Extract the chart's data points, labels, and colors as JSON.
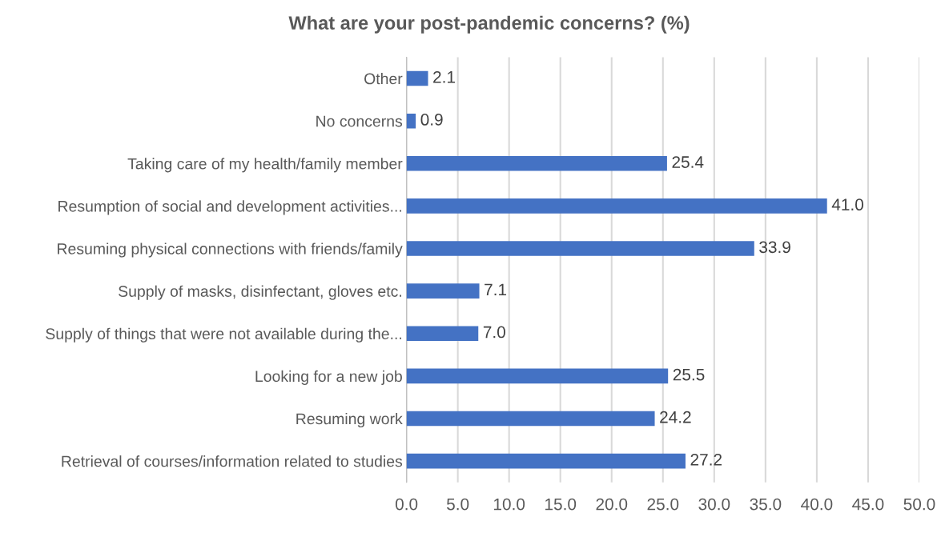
{
  "chart_data": {
    "type": "bar",
    "orientation": "horizontal",
    "title": "What are your post-pandemic concerns? (%)",
    "categories": [
      "Other",
      "No concerns",
      "Taking care of my health/family member",
      "Resumption of social and development activities...",
      "Resuming physical connections with friends/family",
      "Supply of masks, disinfectant, gloves etc.",
      "Supply of things that were not available during the...",
      "Looking for a new job",
      "Resuming work",
      "Retrieval of courses/information related to studies"
    ],
    "values": [
      2.1,
      0.9,
      25.4,
      41.0,
      33.9,
      7.1,
      7.0,
      25.5,
      24.2,
      27.2
    ],
    "value_labels": [
      "2.1",
      "0.9",
      "25.4",
      "41.0",
      "33.9",
      "7.1",
      "7.0",
      "25.5",
      "24.2",
      "27.2"
    ],
    "color": "#4472c4",
    "xlim": [
      0,
      50
    ],
    "xticks": [
      {
        "value": 0,
        "label": "0.0"
      },
      {
        "value": 5,
        "label": "5.0"
      },
      {
        "value": 10,
        "label": "10.0"
      },
      {
        "value": 15,
        "label": "15.0"
      },
      {
        "value": 20,
        "label": "20.0"
      },
      {
        "value": 25,
        "label": "25.0"
      },
      {
        "value": 30,
        "label": "30.0"
      },
      {
        "value": 35,
        "label": "35.0"
      },
      {
        "value": 40,
        "label": "40.0"
      },
      {
        "value": 45,
        "label": "45.0"
      },
      {
        "value": 50,
        "label": "50.0"
      }
    ],
    "grid": "x"
  }
}
